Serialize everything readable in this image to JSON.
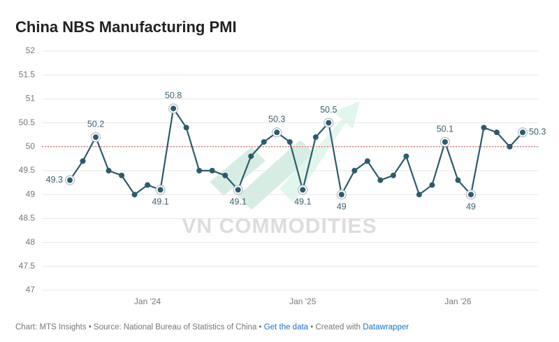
{
  "chart_data": {
    "type": "line",
    "title": "China NBS Manufacturing PMI",
    "categories": [
      null,
      null,
      null,
      null,
      null,
      null,
      "Jan '24",
      null,
      null,
      null,
      null,
      null,
      null,
      null,
      null,
      null,
      null,
      null,
      "Jan '25",
      null,
      null,
      null,
      null,
      null,
      null,
      null,
      null,
      null,
      null,
      null,
      "Jan '26",
      null,
      null,
      null,
      null,
      null
    ],
    "values": [
      49.3,
      49.7,
      50.2,
      49.5,
      49.4,
      49.0,
      49.2,
      49.1,
      50.8,
      50.4,
      49.5,
      49.5,
      49.4,
      49.1,
      49.8,
      50.1,
      50.3,
      50.1,
      49.1,
      50.2,
      50.5,
      49.0,
      49.5,
      49.7,
      49.3,
      49.4,
      49.8,
      49.0,
      49.2,
      50.1,
      49.3,
      49.0,
      50.4,
      50.3,
      50.0,
      50.3
    ],
    "value_labels": [
      "49.3",
      null,
      "50.2",
      null,
      null,
      null,
      null,
      "49.1",
      "50.8",
      null,
      null,
      null,
      null,
      "49.1",
      null,
      null,
      "50.3",
      null,
      "49.1",
      null,
      "50.5",
      "49",
      null,
      null,
      null,
      null,
      null,
      null,
      null,
      "50.1",
      null,
      "49",
      null,
      null,
      null,
      "50.3"
    ],
    "color": "#2d5b6b",
    "ylim": [
      47,
      52
    ],
    "yticks": [
      47,
      47.5,
      48,
      48.5,
      49,
      49.5,
      50,
      50.5,
      51,
      51.5,
      52
    ],
    "grid": true,
    "reference_line": 50,
    "reference_color": "#d9534f",
    "watermark": "VN COMMODITIES",
    "footer": [
      "Chart: MTS Insights • Source: National Bureau of Statistics of China • ",
      "Get the data",
      " • Created with ",
      "Datawrapper"
    ]
  }
}
